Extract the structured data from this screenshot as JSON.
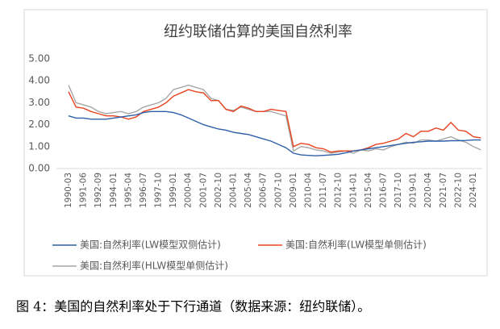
{
  "chart_data": {
    "type": "line",
    "title": "纽约联储估算的美国自然利率",
    "caption": "图 4：美国的自然利率处于下行通道（数据来源：纽约联储）。",
    "categories": [
      "1990-03",
      null,
      "1991-06",
      null,
      "1992-09",
      null,
      "1994-01",
      null,
      "1995-04",
      null,
      "1996-07",
      null,
      "1997-10",
      null,
      "1999-01",
      null,
      "2000-04",
      null,
      "2001-07",
      null,
      "2002-10",
      null,
      "2004-01",
      null,
      "2005-04",
      null,
      "2006-07",
      null,
      "2007-10",
      null,
      "2009-01",
      null,
      "2010-04",
      null,
      "2011-07",
      null,
      "2012-10",
      null,
      "2014-01",
      null,
      "2015-04",
      null,
      "2016-07",
      null,
      "2017-10",
      null,
      "2019-01",
      null,
      "2020-04",
      null,
      "2021-07",
      null,
      "2022-10",
      null,
      "2024-01",
      null
    ],
    "series": [
      {
        "name": "美国:自然利率(LW模型双侧估计)",
        "color": "#2e5fa8",
        "values": [
          2.4,
          2.3,
          2.3,
          2.25,
          2.25,
          2.25,
          2.3,
          2.35,
          2.4,
          2.45,
          2.55,
          2.6,
          2.6,
          2.6,
          2.55,
          2.45,
          2.3,
          2.15,
          2.0,
          1.9,
          1.8,
          1.75,
          1.65,
          1.6,
          1.55,
          1.45,
          1.35,
          1.25,
          1.1,
          0.95,
          0.7,
          0.62,
          0.6,
          0.58,
          0.6,
          0.62,
          0.65,
          0.72,
          0.8,
          0.85,
          0.9,
          0.95,
          1.0,
          1.05,
          1.1,
          1.15,
          1.2,
          1.22,
          1.25,
          1.25,
          1.25,
          1.27,
          1.27,
          1.28,
          1.3,
          1.3
        ]
      },
      {
        "name": "美国:自然利率(LW模型单侧估计)",
        "color": "#e8431f",
        "values": [
          3.5,
          2.8,
          2.75,
          2.6,
          2.5,
          2.4,
          2.4,
          2.35,
          2.25,
          2.35,
          2.6,
          2.7,
          2.8,
          3.0,
          3.3,
          3.45,
          3.6,
          3.5,
          3.45,
          3.1,
          3.1,
          2.7,
          2.6,
          2.85,
          2.75,
          2.6,
          2.6,
          2.7,
          2.65,
          2.6,
          1.0,
          1.15,
          1.1,
          0.95,
          0.9,
          0.75,
          0.8,
          0.8,
          0.8,
          0.85,
          0.95,
          1.1,
          1.15,
          1.25,
          1.35,
          1.6,
          1.45,
          1.7,
          1.7,
          1.85,
          1.75,
          2.1,
          1.75,
          1.7,
          1.45,
          1.4
        ]
      },
      {
        "name": "美国:自然利率(HLW模型单侧估计)",
        "color": "#a6a6a6",
        "values": [
          3.8,
          3.0,
          2.9,
          2.8,
          2.6,
          2.5,
          2.55,
          2.6,
          2.5,
          2.6,
          2.8,
          2.9,
          3.0,
          3.2,
          3.6,
          3.7,
          3.8,
          3.7,
          3.6,
          3.2,
          3.1,
          2.7,
          2.65,
          2.8,
          2.7,
          2.6,
          2.6,
          2.6,
          2.5,
          2.4,
          0.8,
          1.0,
          0.95,
          0.85,
          0.8,
          0.7,
          0.75,
          0.8,
          0.7,
          0.85,
          0.8,
          0.9,
          0.85,
          1.0,
          1.1,
          1.2,
          1.15,
          1.3,
          1.3,
          1.25,
          1.35,
          1.45,
          1.3,
          1.2,
          1.0,
          0.85
        ]
      }
    ],
    "ylim": [
      0,
      5
    ],
    "yticks": [
      {
        "value": 0,
        "label": "0.00"
      },
      {
        "value": 1,
        "label": "1.00"
      },
      {
        "value": 2,
        "label": "2.00"
      },
      {
        "value": 3,
        "label": "3.00"
      },
      {
        "value": 4,
        "label": "4.00"
      },
      {
        "value": 5,
        "label": "5.00"
      }
    ],
    "grid": false,
    "legend": "bottom"
  }
}
